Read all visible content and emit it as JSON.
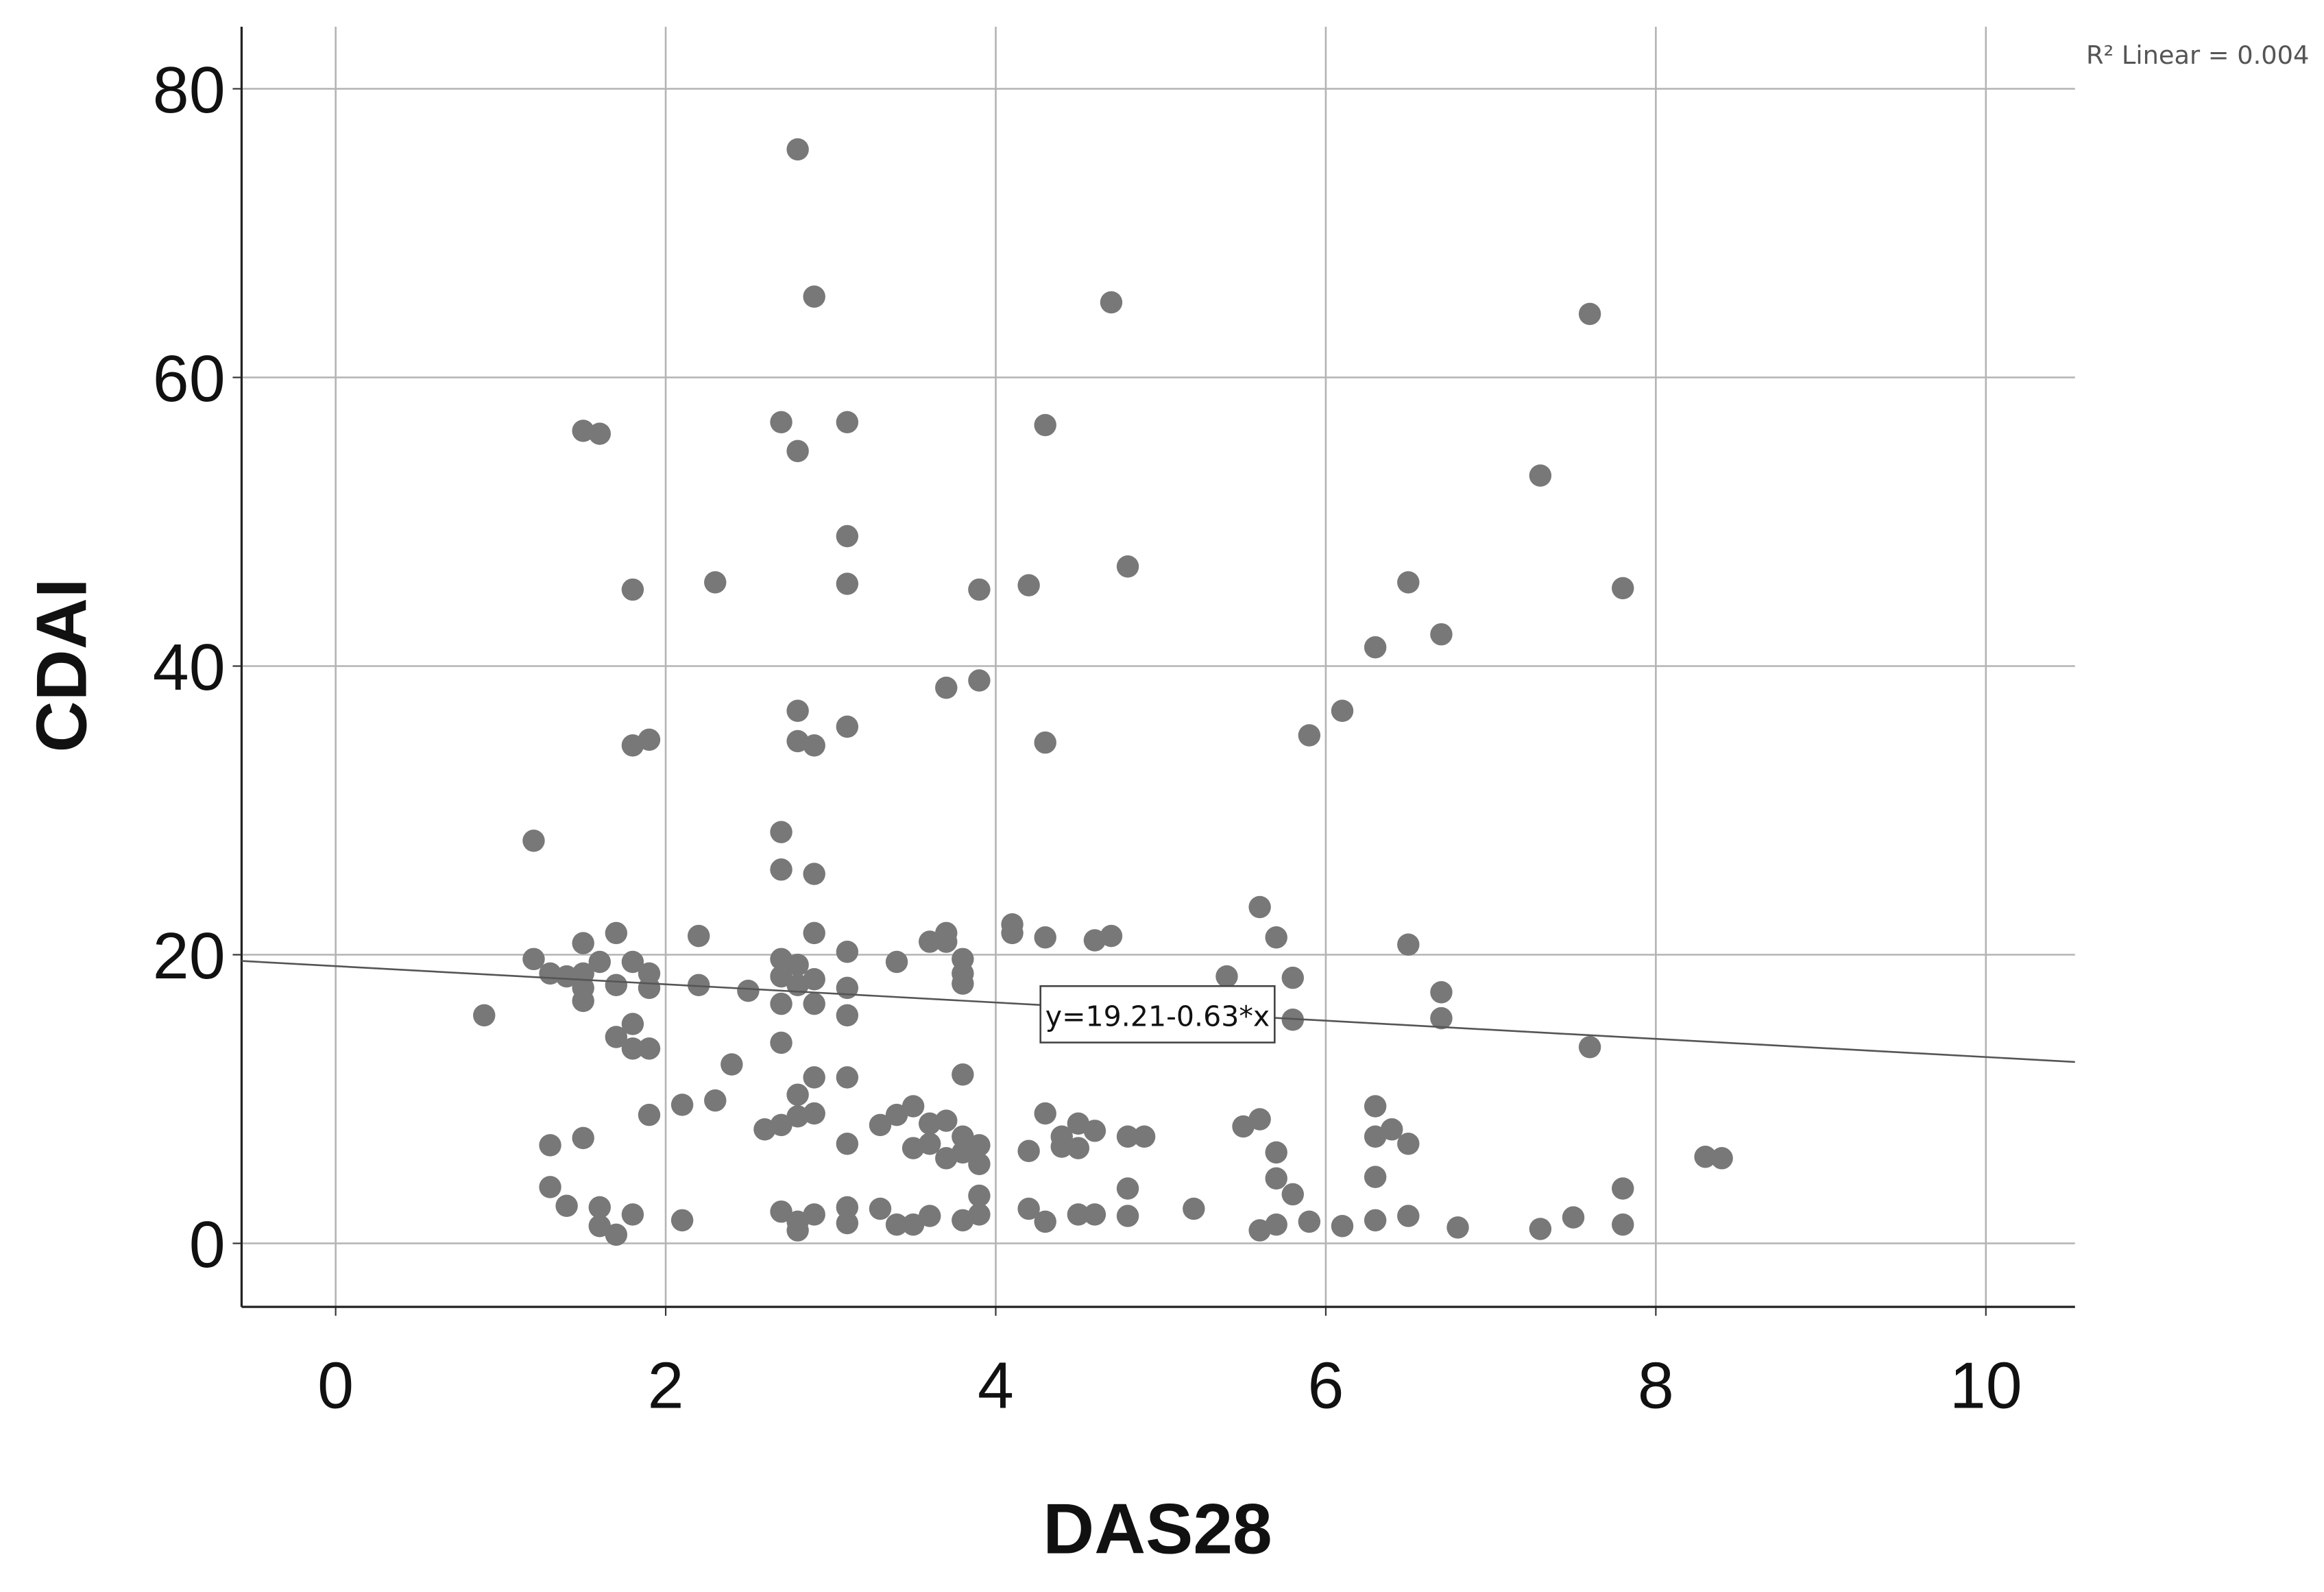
{
  "chart_data": {
    "type": "scatter",
    "x_label": "DAS28",
    "y_label": "CDAI",
    "annotation": "R² Linear = 0.004",
    "fit": {
      "intercept": 19.21,
      "slope": -0.63,
      "label": "y=19.21-0.63*x"
    },
    "color": "#787878",
    "grid": true,
    "xlim": [
      -0.57,
      10.54
    ],
    "ylim": [
      -4.4,
      84.3
    ],
    "xticks": [
      0,
      2,
      4,
      6,
      8,
      10
    ],
    "yticks": [
      0,
      20,
      40,
      60,
      80
    ],
    "x": [
      0.9,
      1.2,
      1.2,
      1.3,
      1.4,
      1.5,
      1.5,
      1.5,
      1.5,
      1.6,
      1.7,
      1.7,
      1.8,
      1.9,
      1.9,
      1.8,
      1.7,
      1.8,
      1.9,
      1.5,
      1.6,
      1.8,
      1.8,
      1.9,
      1.9,
      1.3,
      1.5,
      1.3,
      1.4,
      1.6,
      1.6,
      1.7,
      1.8,
      2.1,
      2.1,
      2.2,
      2.2,
      2.3,
      2.3,
      2.4,
      2.5,
      2.6,
      2.7,
      2.7,
      2.7,
      2.7,
      2.7,
      2.7,
      2.7,
      2.7,
      2.8,
      2.8,
      2.8,
      2.8,
      2.8,
      2.8,
      2.8,
      2.8,
      2.9,
      2.9,
      2.9,
      2.9,
      2.9,
      2.9,
      2.9,
      2.9,
      2.7,
      2.8,
      2.9,
      2.8,
      3.1,
      3.1,
      3.1,
      3.1,
      3.1,
      3.1,
      3.1,
      3.1,
      3.1,
      3.1,
      3.1,
      3.3,
      3.3,
      3.4,
      3.4,
      3.4,
      3.5,
      3.5,
      3.5,
      3.6,
      3.6,
      3.6,
      3.6,
      3.7,
      3.7,
      3.7,
      3.7,
      3.7,
      3.8,
      3.8,
      3.8,
      3.8,
      3.8,
      3.8,
      3.8,
      3.9,
      3.9,
      3.9,
      3.9,
      3.9,
      3.9,
      4.1,
      4.1,
      4.2,
      4.2,
      4.2,
      4.3,
      4.3,
      4.3,
      4.3,
      4.3,
      4.4,
      4.4,
      4.5,
      4.5,
      4.5,
      4.6,
      4.6,
      4.6,
      4.7,
      4.7,
      4.8,
      4.8,
      4.8,
      4.8,
      4.9,
      5.2,
      5.4,
      5.5,
      5.6,
      5.6,
      5.6,
      5.7,
      5.7,
      5.7,
      5.7,
      5.8,
      5.8,
      5.8,
      5.9,
      5.9,
      6.1,
      6.1,
      6.3,
      6.3,
      6.3,
      6.3,
      6.3,
      6.4,
      6.5,
      6.5,
      6.5,
      6.5,
      6.7,
      6.7,
      6.7,
      6.8,
      7.3,
      7.3,
      7.5,
      7.6,
      7.6,
      7.8,
      7.8,
      7.8,
      8.3,
      8.4
    ],
    "values": [
      15.8,
      27.9,
      19.7,
      18.7,
      18.5,
      20.8,
      18.7,
      17.7,
      16.8,
      19.5,
      21.5,
      17.9,
      19.5,
      18.7,
      17.7,
      15.2,
      14.3,
      13.5,
      13.5,
      56.3,
      56.1,
      45.3,
      34.5,
      34.9,
      8.9,
      6.8,
      7.3,
      3.9,
      2.6,
      2.5,
      1.2,
      0.6,
      2.0,
      1.6,
      9.6,
      21.3,
      17.9,
      45.8,
      9.9,
      12.4,
      17.5,
      7.9,
      8.2,
      28.5,
      25.9,
      19.7,
      18.5,
      16.6,
      13.9,
      56.9,
      75.8,
      54.9,
      36.9,
      34.8,
      10.3,
      8.8,
      19.3,
      17.9,
      65.6,
      34.5,
      25.6,
      21.5,
      18.3,
      16.6,
      11.5,
      9.0,
      2.2,
      1.5,
      2.0,
      0.9,
      56.9,
      49.0,
      45.7,
      35.8,
      20.2,
      17.7,
      15.8,
      11.5,
      6.9,
      2.5,
      1.4,
      2.4,
      8.2,
      19.5,
      8.9,
      1.3,
      9.5,
      6.6,
      1.3,
      20.9,
      8.3,
      6.9,
      1.9,
      38.5,
      21.5,
      20.9,
      8.5,
      5.9,
      19.7,
      18.7,
      18.0,
      11.7,
      7.4,
      6.3,
      1.6,
      45.3,
      39.0,
      6.8,
      5.5,
      3.3,
      2.0,
      22.1,
      21.5,
      45.6,
      6.4,
      2.4,
      56.7,
      34.7,
      21.2,
      9.0,
      1.5,
      7.4,
      6.7,
      8.3,
      6.6,
      2.0,
      21.0,
      7.8,
      2.0,
      65.2,
      21.3,
      46.9,
      7.4,
      3.8,
      1.9,
      7.4,
      2.4,
      18.5,
      8.1,
      23.3,
      8.6,
      0.9,
      21.2,
      6.3,
      4.5,
      1.3,
      18.4,
      15.5,
      3.4,
      35.2,
      1.5,
      36.9,
      1.2,
      41.3,
      9.5,
      7.4,
      4.6,
      1.6,
      7.9,
      45.8,
      20.7,
      6.9,
      1.9,
      42.2,
      17.4,
      15.6,
      1.1,
      53.2,
      1.0,
      1.8,
      64.4,
      13.6,
      45.4,
      3.8,
      1.3,
      6.0,
      5.9
    ]
  }
}
